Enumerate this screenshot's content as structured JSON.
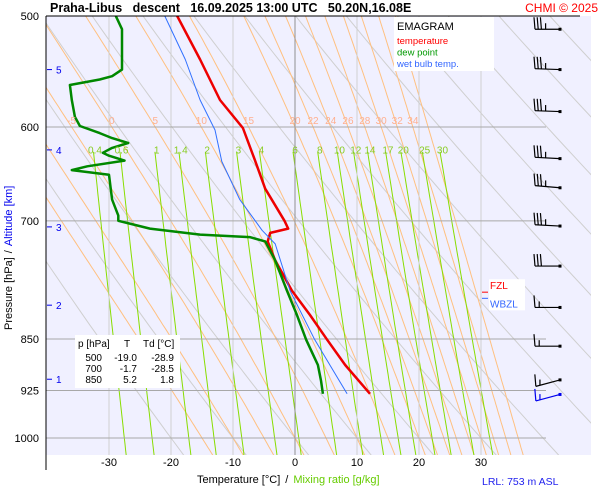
{
  "header": {
    "title": "Praha-Libus   descent   16.09.2025 13:00 UTC   50.20N,16.08E",
    "copyright": "CHMI © 2025"
  },
  "footer": {
    "xlabel": "Temperature [°C]",
    "separator": "/",
    "xlabel2": "Mixing ratio [g/kg]",
    "lrl": "LRL: 753 m ASL"
  },
  "chart_data": {
    "type": "line",
    "subtype": "emagram",
    "title": "Praha-Libus descent 16.09.2025 13:00 UTC 50.20N,16.08E",
    "xlabel": "Temperature [°C]",
    "xlabel2": "Mixing ratio [g/kg]",
    "ylabel": "Pressure [hPa]",
    "ylabel2": "Altitude [km]",
    "xlim": [
      -40.2,
      40.5
    ],
    "ylim": [
      1027,
      500
    ],
    "y_scale": "log",
    "grid": true,
    "x_ticks": [
      -30,
      -20,
      -10,
      0,
      10,
      20,
      30
    ],
    "y_ticks": [
      500,
      600,
      700,
      850,
      925,
      1000
    ],
    "altitude_ticks": [
      {
        "km": "5",
        "p": 546
      },
      {
        "km": "4",
        "p": 623
      },
      {
        "km": "3",
        "p": 707
      },
      {
        "km": "2",
        "p": 804
      },
      {
        "km": "1",
        "p": 908
      }
    ],
    "legend": {
      "placement": "top-right",
      "title": "EMAGRAM",
      "entries": [
        {
          "label": "temperature",
          "color": "#ff0000"
        },
        {
          "label": "dew point",
          "color": "#009900"
        },
        {
          "label": "wet bulb temp.",
          "color": "#3366ff"
        }
      ]
    },
    "series": [
      {
        "name": "temperature",
        "color": "#ee0000",
        "width": 2.5,
        "points": [
          [
            500,
            -19.0
          ],
          [
            537,
            -15.3
          ],
          [
            574,
            -12.1
          ],
          [
            601,
            -8.4
          ],
          [
            633,
            -6.5
          ],
          [
            664,
            -4.8
          ],
          [
            700,
            -1.7
          ],
          [
            709,
            -1.1
          ],
          [
            714,
            -4.0
          ],
          [
            724,
            -4.4
          ],
          [
            747,
            -3.2
          ],
          [
            785,
            -0.5
          ],
          [
            817,
            2.4
          ],
          [
            851,
            5.2
          ],
          [
            887,
            8.1
          ],
          [
            930,
            12.1
          ]
        ]
      },
      {
        "name": "dew point",
        "color": "#008800",
        "width": 2.5,
        "points": [
          [
            500,
            -28.9
          ],
          [
            511,
            -27.9
          ],
          [
            530,
            -27.9
          ],
          [
            546,
            -27.9
          ],
          [
            552,
            -29.5
          ],
          [
            555,
            -31.5
          ],
          [
            560,
            -36.3
          ],
          [
            574,
            -36.0
          ],
          [
            590,
            -35.5
          ],
          [
            599,
            -34.7
          ],
          [
            606,
            -31.5
          ],
          [
            611,
            -29.5
          ],
          [
            616,
            -26.9
          ],
          [
            621,
            -29.5
          ],
          [
            626,
            -31.0
          ],
          [
            629,
            -30.0
          ],
          [
            634,
            -27.5
          ],
          [
            640,
            -33.5
          ],
          [
            644,
            -36.0
          ],
          [
            649,
            -30.0
          ],
          [
            676,
            -29.5
          ],
          [
            694,
            -28.5
          ],
          [
            700,
            -28.5
          ],
          [
            709,
            -23.4
          ],
          [
            716,
            -15.3
          ],
          [
            719,
            -7.3
          ],
          [
            724,
            -4.8
          ],
          [
            747,
            -3.2
          ],
          [
            785,
            -1.3
          ],
          [
            817,
            0.3
          ],
          [
            851,
            1.8
          ],
          [
            870,
            2.8
          ],
          [
            887,
            3.7
          ],
          [
            910,
            4.2
          ],
          [
            930,
            4.5
          ]
        ]
      },
      {
        "name": "wet bulb temp.",
        "color": "#3070ff",
        "width": 1,
        "points": [
          [
            500,
            -21.0
          ],
          [
            537,
            -17.7
          ],
          [
            574,
            -15.3
          ],
          [
            603,
            -12.9
          ],
          [
            635,
            -11.8
          ],
          [
            676,
            -8.9
          ],
          [
            711,
            -5.3
          ],
          [
            727,
            -3.2
          ],
          [
            785,
            -0.8
          ],
          [
            851,
            3.2
          ],
          [
            930,
            8.4
          ]
        ]
      }
    ],
    "moist_adiabat_labels": [
      "-5",
      "0",
      "5",
      "10",
      "15",
      "20",
      "22",
      "24",
      "26",
      "28",
      "30",
      "32",
      "34"
    ],
    "moist_adiabat_values": [
      -15,
      -10,
      -5,
      0,
      5,
      10,
      15,
      20,
      22,
      24,
      26,
      28,
      30,
      32,
      34,
      36
    ],
    "mixing_ratio_labels": [
      "0.4",
      "0.6",
      "1",
      "1.4",
      "2",
      "3",
      "4",
      "6",
      "8",
      "10",
      "12",
      "14",
      "17",
      "20",
      "25",
      "30"
    ],
    "dry_adiabats_theta_c": [
      -20,
      -10,
      0,
      10,
      20,
      30,
      40,
      50,
      60,
      70,
      80,
      90,
      100,
      110,
      120,
      130
    ],
    "table": {
      "headers": [
        "p [hPa]",
        "T",
        "Td [°C]"
      ],
      "rows": [
        [
          "500",
          "-19.0",
          "-28.9"
        ],
        [
          "700",
          "-1.7",
          "-28.5"
        ],
        [
          "850",
          "5.2",
          "1.8"
        ]
      ]
    },
    "levels": [
      {
        "label": "FZL",
        "p": 787,
        "color": "#ff0000"
      },
      {
        "label": "WBZL",
        "p": 795,
        "color": "#3366ff"
      }
    ],
    "wind": [
      {
        "p": 511,
        "dir": 270,
        "kt": 35
      },
      {
        "p": 546,
        "dir": 272,
        "kt": 35
      },
      {
        "p": 585,
        "dir": 272,
        "kt": 35
      },
      {
        "p": 632,
        "dir": 273,
        "kt": 35
      },
      {
        "p": 663,
        "dir": 275,
        "kt": 35
      },
      {
        "p": 706,
        "dir": 273,
        "kt": 35
      },
      {
        "p": 754,
        "dir": 270,
        "kt": 30
      },
      {
        "p": 807,
        "dir": 270,
        "kt": 15
      },
      {
        "p": 860,
        "dir": 270,
        "kt": 15
      },
      {
        "p": 909,
        "dir": 255,
        "kt": 15
      },
      {
        "p": 931,
        "dir": 255,
        "kt": 15,
        "color": "#0000ee"
      }
    ]
  }
}
